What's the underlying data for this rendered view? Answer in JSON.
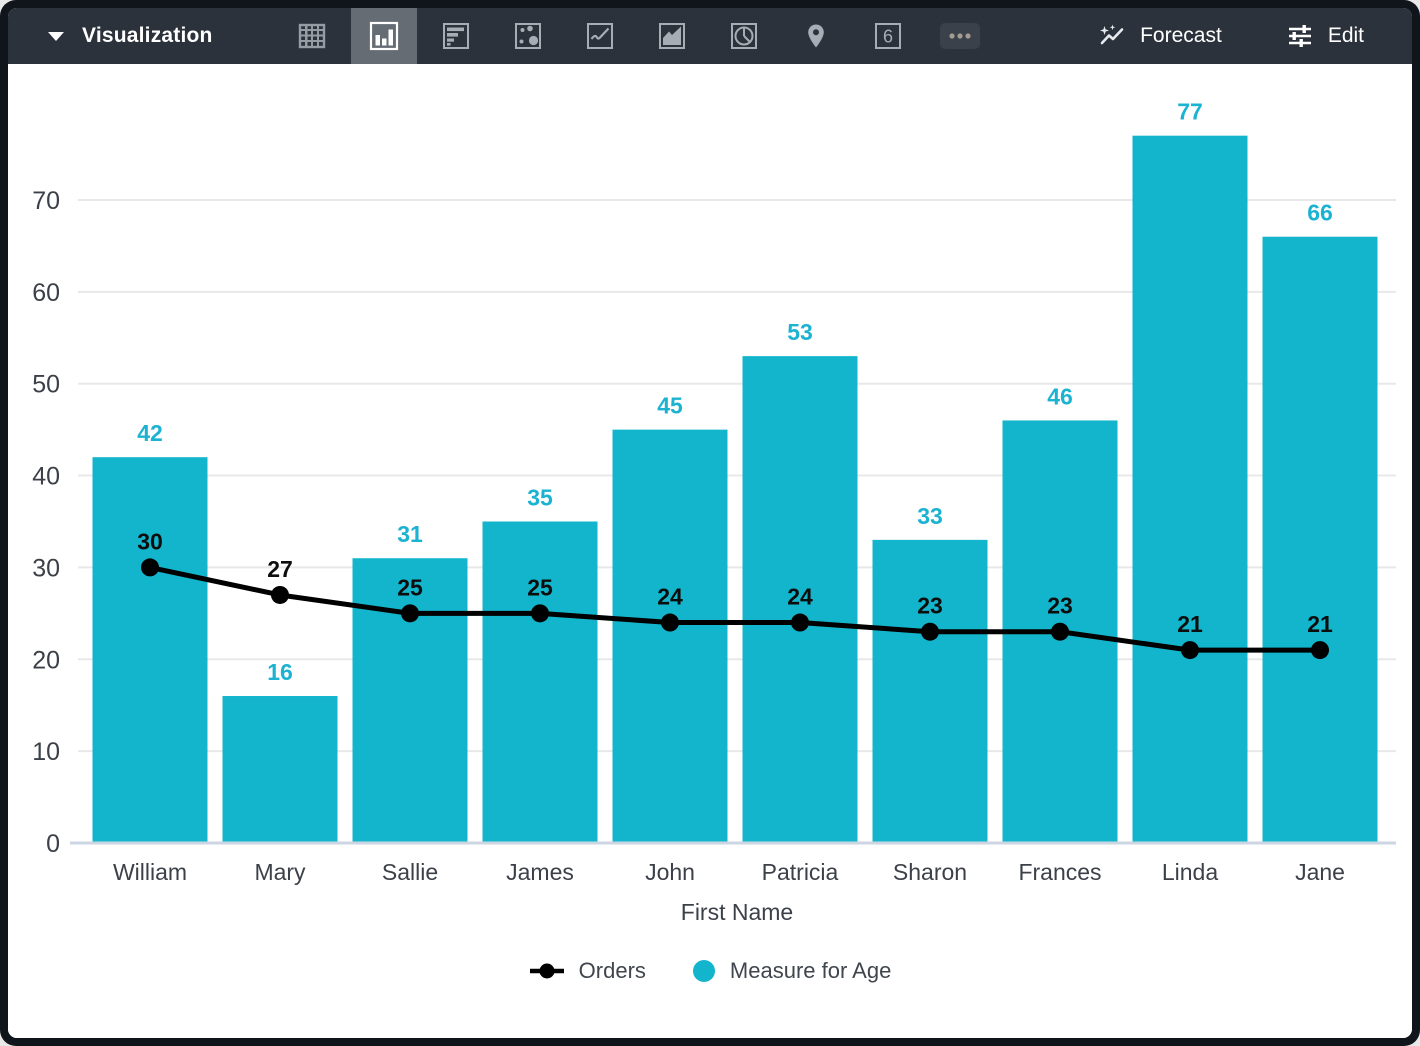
{
  "toolbar": {
    "title": "Visualization",
    "viz_types": [
      {
        "id": "table",
        "icon": "table-icon",
        "selected": false
      },
      {
        "id": "column",
        "icon": "column-chart-icon",
        "selected": true
      },
      {
        "id": "bar",
        "icon": "bar-chart-icon",
        "selected": false
      },
      {
        "id": "scatter",
        "icon": "scatter-plot-icon",
        "selected": false
      },
      {
        "id": "line",
        "icon": "line-chart-icon",
        "selected": false
      },
      {
        "id": "area",
        "icon": "area-chart-icon",
        "selected": false
      },
      {
        "id": "pie",
        "icon": "pie-chart-icon",
        "selected": false
      },
      {
        "id": "map",
        "icon": "map-pin-icon",
        "selected": false
      },
      {
        "id": "single-value",
        "icon": "single-value-icon",
        "label": "6",
        "selected": false
      },
      {
        "id": "more",
        "icon": "ellipsis-icon",
        "selected": false
      }
    ],
    "forecast_label": "Forecast",
    "edit_label": "Edit"
  },
  "chart_data": {
    "type": "bar+line",
    "categories": [
      "William",
      "Mary",
      "Sallie",
      "James",
      "John",
      "Patricia",
      "Sharon",
      "Frances",
      "Linda",
      "Jane"
    ],
    "series": [
      {
        "name": "Orders",
        "type": "line",
        "color": "#000000",
        "values": [
          30,
          27,
          25,
          25,
          24,
          24,
          23,
          23,
          21,
          21
        ]
      },
      {
        "name": "Measure for Age",
        "type": "bar",
        "color": "#12b5cb",
        "values": [
          42,
          16,
          31,
          35,
          45,
          53,
          33,
          46,
          77,
          66
        ]
      }
    ],
    "xlabel": "First Name",
    "ylabel": "",
    "ylim": [
      0,
      80
    ],
    "yticks": [
      0,
      10,
      20,
      30,
      40,
      50,
      60,
      70
    ],
    "grid": true,
    "legend_position": "bottom",
    "bar_label_color": "#1cb2d1",
    "line_label_color": "#0d0d0d",
    "axis_text_color": "#3c4149",
    "gridline_color": "#e8e8e8",
    "baseline_color": "#ccd6e2"
  },
  "colors": {
    "accent_cyan": "#12b5cb",
    "toolbar_bg": "#2b323b",
    "toolbar_selected_bg": "#656c74",
    "frame": "#10151b",
    "icon_gray": "#a7adb5"
  }
}
